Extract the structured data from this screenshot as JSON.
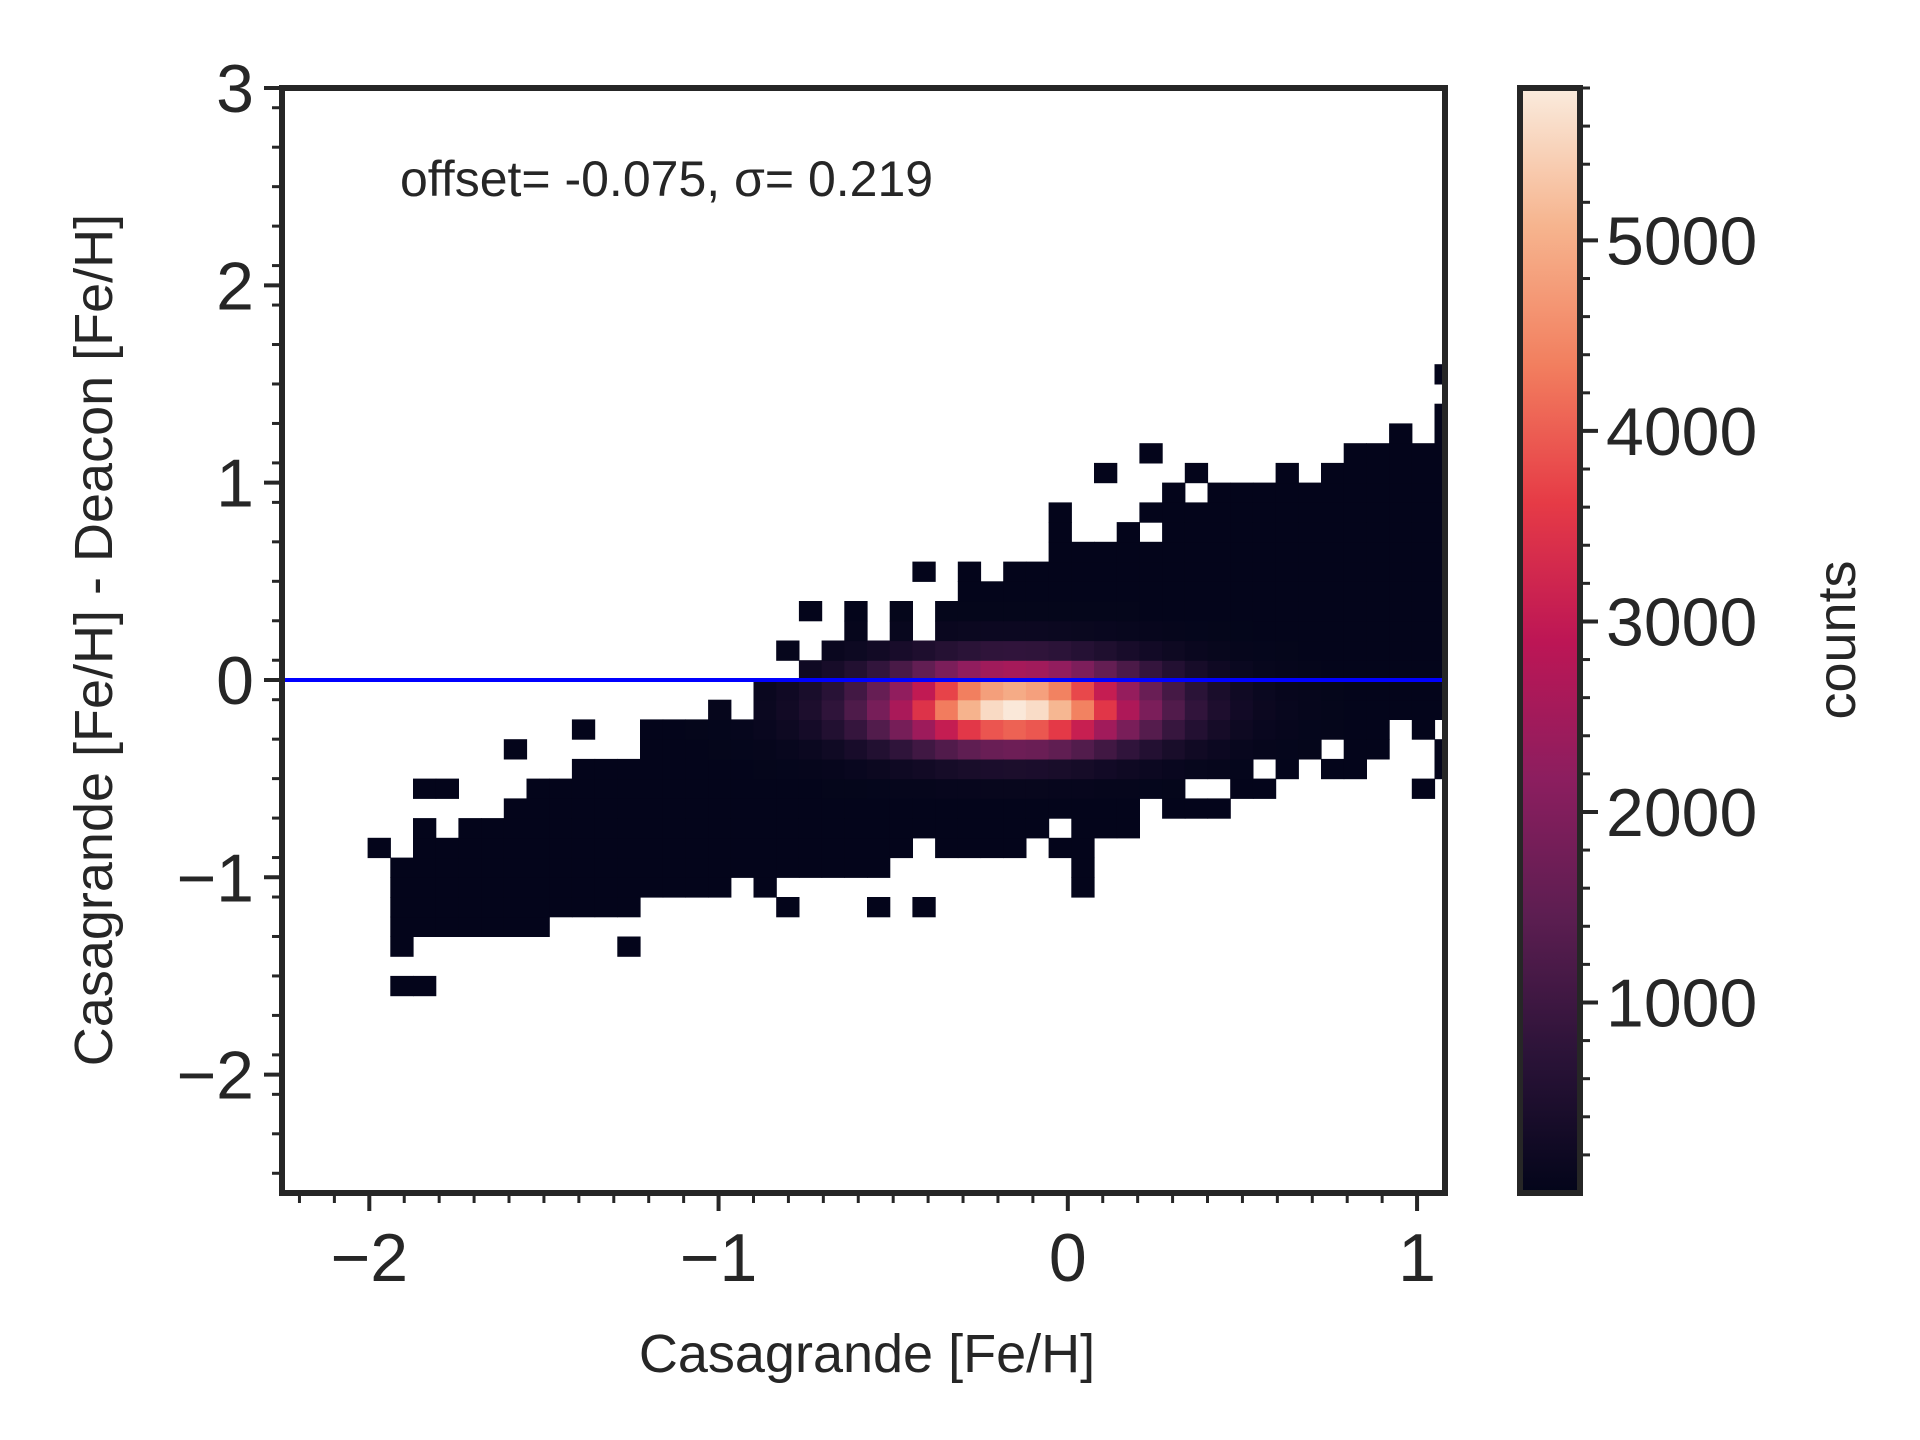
{
  "chart_data": {
    "type": "heatmap",
    "title": "",
    "xlabel": "Casagrande [Fe/H]",
    "ylabel": "Casagrande [Fe/H] - Deacon [Fe/H]",
    "annotation": "offset= -0.075, σ= 0.219",
    "xlim": [
      -2.25,
      1.08
    ],
    "ylim": [
      -2.6,
      3.0
    ],
    "x_ticks": [
      -2,
      -1,
      0,
      1
    ],
    "x_tick_labels": [
      "−2",
      "−1",
      "0",
      "1"
    ],
    "y_ticks": [
      -2,
      -1,
      0,
      1,
      2,
      3
    ],
    "y_tick_labels": [
      "−2",
      "−1",
      "0",
      "1",
      "2",
      "3"
    ],
    "bin_width_x": 0.065,
    "bin_width_y": 0.1,
    "reference_line": {
      "y": 0,
      "color": "#0000ff"
    },
    "density_peak": {
      "x": -0.15,
      "y": -0.13,
      "max_count": 5800
    },
    "colorbar": {
      "label": "counts",
      "range": [
        0,
        5800
      ],
      "ticks": [
        1000,
        2000,
        3000,
        4000,
        5000
      ],
      "tick_labels": [
        "1000",
        "2000",
        "3000",
        "4000",
        "5000"
      ],
      "colormap": [
        "#03051a",
        "#2b1338",
        "#5c1e51",
        "#8c1e5f",
        "#bd1655",
        "#e63b46",
        "#f27f5f",
        "#f6b48e",
        "#faebdd"
      ]
    },
    "grid": false
  }
}
